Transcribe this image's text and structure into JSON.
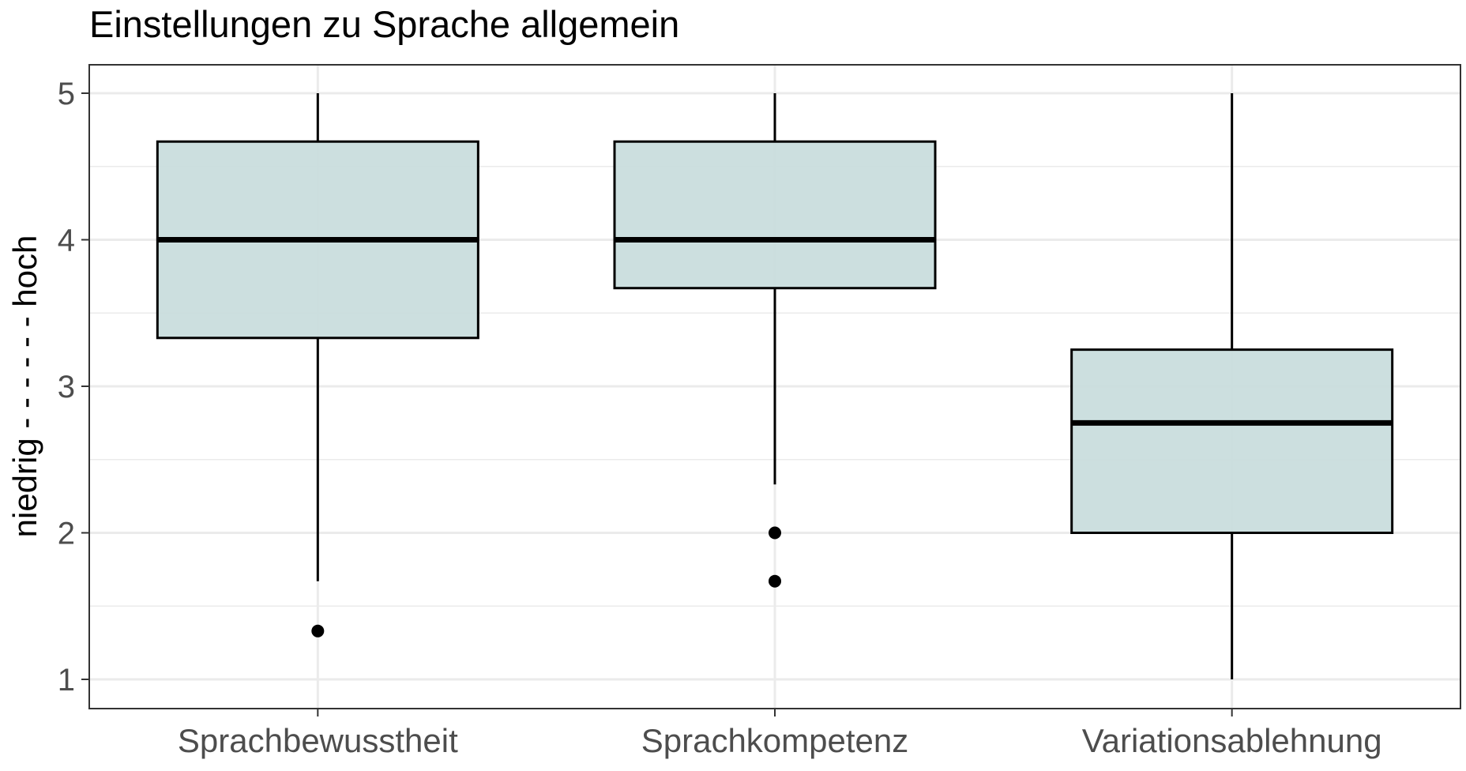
{
  "chart_data": {
    "type": "boxplot",
    "title": "Einstellungen zu Sprache allgemein",
    "xlabel": "",
    "ylabel": "niedrig - - - - - - hoch",
    "ylim": [
      0.8,
      5.2
    ],
    "yticks": [
      1,
      2,
      3,
      4,
      5
    ],
    "categories": [
      "Sprachbewusstheit",
      "Sprachkompetenz",
      "Variationsablehnung"
    ],
    "boxes": [
      {
        "category": "Sprachbewusstheit",
        "whisker_low": 1.67,
        "q1": 3.33,
        "median": 4.0,
        "q3": 4.67,
        "whisker_high": 5.0,
        "outliers": [
          1.33
        ]
      },
      {
        "category": "Sprachkompetenz",
        "whisker_low": 2.33,
        "q1": 3.67,
        "median": 4.0,
        "q3": 4.67,
        "whisker_high": 5.0,
        "outliers": [
          2.0,
          1.67
        ]
      },
      {
        "category": "Variationsablehnung",
        "whisker_low": 1.0,
        "q1": 2.0,
        "median": 2.75,
        "q3": 3.25,
        "whisker_high": 5.0,
        "outliers": []
      }
    ],
    "box_fill": "#c9dddd",
    "grid": true
  }
}
